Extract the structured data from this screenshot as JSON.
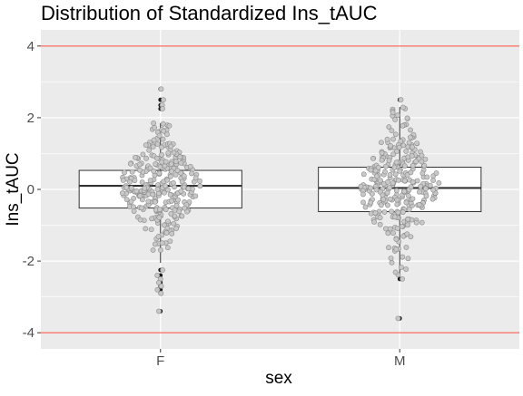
{
  "chart_data": {
    "type": "box",
    "title": "Distribution of Standardized Ins_tAUC",
    "xlabel": "sex",
    "ylabel": "Ins_tAUC",
    "categories": [
      "F",
      "M"
    ],
    "ylim": [
      -4.45,
      4.45
    ],
    "yticks": [
      -4,
      -2,
      0,
      2,
      4
    ],
    "ytick_labels": [
      "-4",
      "-2",
      "0",
      "2",
      "4"
    ],
    "reference_lines": [
      -4,
      4
    ],
    "reference_line_color": "#F8766D",
    "panel_background": "#EBEBEB",
    "grid": true,
    "boxes": [
      {
        "category": "F",
        "q1": -0.52,
        "median": 0.1,
        "q3": 0.53,
        "whisker_low": -2.05,
        "whisker_high": 1.85,
        "outliers": [
          2.8,
          2.5,
          2.35,
          2.25,
          -2.25,
          -2.4,
          -2.5,
          -2.6,
          -2.7,
          -2.8,
          -2.9,
          -3.4
        ]
      },
      {
        "category": "M",
        "q1": -0.62,
        "median": 0.04,
        "q3": 0.62,
        "whisker_low": -2.4,
        "whisker_high": 2.3,
        "outliers": [
          2.5,
          -2.5,
          -3.6
        ]
      }
    ]
  }
}
